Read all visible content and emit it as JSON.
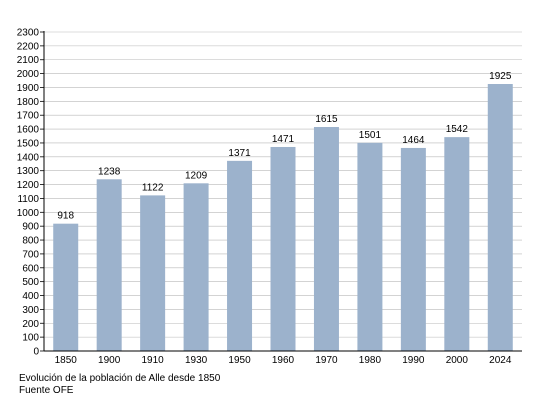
{
  "chart_data": {
    "type": "bar",
    "categories": [
      "1850",
      "1900",
      "1910",
      "1930",
      "1950",
      "1960",
      "1970",
      "1980",
      "1990",
      "2000",
      "2024"
    ],
    "values": [
      918,
      1238,
      1122,
      1209,
      1371,
      1471,
      1615,
      1501,
      1464,
      1542,
      1925
    ],
    "title": "",
    "xlabel": "",
    "ylabel": "",
    "ylim": [
      0,
      2300
    ],
    "ytick_step": 100,
    "grid": true,
    "legend": "none",
    "bar_color": "#9cb2cc",
    "grid_color": "#b9b9b9"
  },
  "caption": {
    "line1": "Evolución de la población de Alle desde 1850",
    "line2": "Fuente OFE"
  }
}
